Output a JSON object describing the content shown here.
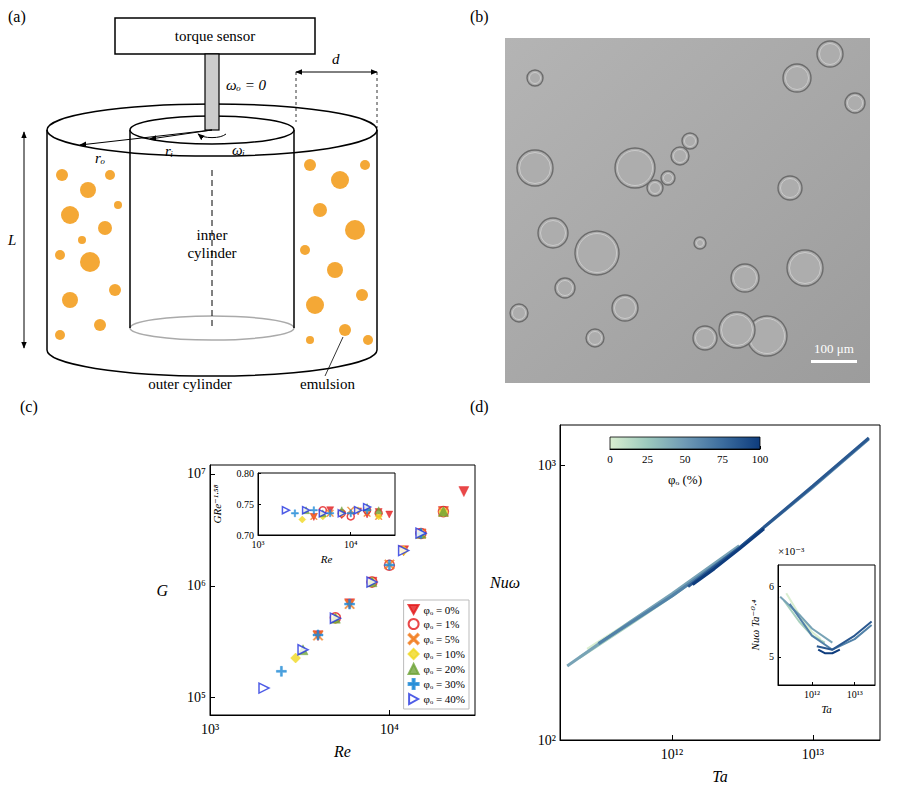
{
  "panel_labels": [
    "(a)",
    "(b)",
    "(c)",
    "(d)"
  ],
  "diagram": {
    "labels": {
      "sensor": "torque sensor",
      "omega_o": "ωₒ = 0",
      "r_o": "rₒ",
      "r_i": "rᵢ",
      "omega_i": "ωᵢ",
      "gap": "d",
      "height": "L",
      "inner": "inner cylinder",
      "outer": "outer cylinder",
      "fluid": "emulsion"
    }
  },
  "micrograph": {
    "scale_bar": "100 μm"
  },
  "chart_data": [
    {
      "type": "scatter",
      "x_label": "Re",
      "y_label": "G",
      "log": true,
      "xlim": [
        1000,
        30000
      ],
      "ylim": [
        70000,
        12000000
      ],
      "xticks": [
        {
          "value": 1000,
          "label": "10³"
        },
        {
          "value": 10000,
          "label": "10⁴"
        }
      ],
      "yticks": [
        {
          "value": 100000,
          "label": "10⁵"
        },
        {
          "value": 1000000,
          "label": "10⁶"
        },
        {
          "value": 10000000,
          "label": "10⁷"
        }
      ],
      "legend": "lower right",
      "series": [
        {
          "name": "φₒ = 0%",
          "color": "#e41a1c",
          "marker": "triangle-down",
          "x": [
            4000,
            6000,
            8000,
            12000,
            15000,
            20000,
            26000
          ],
          "values": [
            358000,
            690000,
            1075000,
            2055000,
            2905000,
            4610000,
            6940000
          ]
        },
        {
          "name": "φₒ = 1%",
          "color": "#e41a1c",
          "marker": "circle-open",
          "x": [
            5000,
            8000,
            10000,
            15000,
            20000
          ],
          "values": [
            516900,
            1079000,
            1525000,
            2933000,
            4595000
          ]
        },
        {
          "name": "φₒ = 5%",
          "color": "#f17c1e",
          "marker": "x",
          "x": [
            4000,
            6000,
            10000,
            15000,
            20000
          ],
          "values": [
            358600,
            685800,
            1546000,
            2913000,
            4564000
          ]
        },
        {
          "name": "φₒ = 10%",
          "color": "#f0d820",
          "marker": "diamond",
          "x": [
            3000,
            5000,
            8000,
            12000,
            20000
          ],
          "values": [
            226100,
            509900,
            1079000,
            2062000,
            4564000
          ]
        },
        {
          "name": "φₒ = 20%",
          "color": "#6fa43a",
          "marker": "triangle-up",
          "x": [
            3300,
            5000,
            8000,
            15000,
            20000
          ],
          "values": [
            268100,
            513400,
            1086000,
            2952000,
            4626000
          ]
        },
        {
          "name": "φₒ = 30%",
          "color": "#1f8ad6",
          "marker": "plus",
          "x": [
            2500,
            4000,
            6000,
            10000,
            15000
          ],
          "values": [
            171800,
            363500,
            685800,
            1535000,
            2933000
          ]
        },
        {
          "name": "φₒ = 40%",
          "color": "#2233e0",
          "marker": "triangle-right-open",
          "x": [
            2000,
            3300,
            5000,
            8000,
            12000,
            15000
          ],
          "values": [
            121700,
            268100,
            513400,
            1079000,
            2062000,
            2952000
          ]
        }
      ]
    },
    {
      "type": "scatter",
      "x_label": "Re",
      "y_label": "GRe⁻¹·⁵⁸",
      "log": "x",
      "xlim": [
        1000,
        30000
      ],
      "ylim": [
        0.7,
        0.8
      ],
      "xticks": [
        {
          "value": 1000,
          "label": "10³"
        },
        {
          "value": 10000,
          "label": "10⁴"
        }
      ],
      "yticks": [
        {
          "value": 0.7,
          "label": "0.70"
        },
        {
          "value": 0.75,
          "label": "0.75"
        },
        {
          "value": 0.8,
          "label": "0.80"
        }
      ],
      "series": [
        {
          "color": "#e41a1c",
          "marker": "triangle-down",
          "x": [
            4000,
            6000,
            8000,
            12000,
            15000,
            20000,
            26000
          ],
          "values": [
            0.729,
            0.74,
            0.732,
            0.738,
            0.733,
            0.737,
            0.733
          ]
        },
        {
          "color": "#e41a1c",
          "marker": "circle-open",
          "x": [
            5000,
            8000,
            10000,
            15000,
            20000
          ],
          "values": [
            0.74,
            0.735,
            0.73,
            0.74,
            0.735
          ]
        },
        {
          "color": "#f17c1e",
          "marker": "x",
          "x": [
            4000,
            6000,
            10000,
            15000,
            20000
          ],
          "values": [
            0.73,
            0.735,
            0.74,
            0.735,
            0.73
          ]
        },
        {
          "color": "#f0d820",
          "marker": "diamond",
          "x": [
            3000,
            5000,
            8000,
            12000,
            20000
          ],
          "values": [
            0.725,
            0.73,
            0.735,
            0.74,
            0.73
          ]
        },
        {
          "color": "#6fa43a",
          "marker": "triangle-up",
          "x": [
            3300,
            5000,
            8000,
            15000,
            20000
          ],
          "values": [
            0.74,
            0.735,
            0.74,
            0.745,
            0.74
          ]
        },
        {
          "color": "#1f8ad6",
          "marker": "plus",
          "x": [
            2500,
            4000,
            6000,
            10000,
            15000
          ],
          "values": [
            0.735,
            0.74,
            0.735,
            0.735,
            0.74
          ]
        },
        {
          "color": "#2233e0",
          "marker": "triangle-right-open",
          "x": [
            2000,
            3300,
            5000,
            8000,
            12000,
            15000
          ],
          "values": [
            0.74,
            0.74,
            0.735,
            0.735,
            0.74,
            0.745
          ]
        }
      ]
    },
    {
      "type": "line",
      "x_label": "Ta",
      "y_label": "Nuω",
      "log": true,
      "xlim": [
        160000000000.0,
        30000000000000.0
      ],
      "ylim": [
        100,
        1400
      ],
      "xticks": [
        {
          "value": 1000000000000.0,
          "label": "10¹²"
        },
        {
          "value": 10000000000000.0,
          "label": "10¹³"
        }
      ],
      "yticks": [
        {
          "value": 100,
          "label": "10²"
        },
        {
          "value": 1000,
          "label": "10³"
        }
      ],
      "colorbar": {
        "label": "φₒ (%)",
        "range": [
          0,
          100
        ],
        "ticks": [
          0,
          25,
          50,
          75,
          100
        ],
        "colors": [
          "#d9eed0",
          "#9cc9bd",
          "#6f9ab5",
          "#3c6d9e",
          "#0e3c7d"
        ]
      },
      "series": [
        {
          "color": "#d9eed0",
          "x": [
            250000000000.0,
            500000000000.0,
            1000000000000.0,
            1600000000000.0
          ],
          "values": [
            213.8,
            268.0,
            337.6,
            400.0
          ]
        },
        {
          "color": "#a7d0be",
          "x": [
            220000000000.0,
            500000000000.0,
            1000000000000.0,
            2000000000000.0
          ],
          "values": [
            199.7,
            263.2,
            334.4,
            432.5
          ]
        },
        {
          "color": "#78a3b6",
          "x": [
            180000000000.0,
            500000000000.0,
            1000000000000.0,
            3000000000000.0
          ],
          "values": [
            185.9,
            268.0,
            340.7,
            509.3
          ]
        },
        {
          "color": "#5282a8",
          "x": [
            300000000000.0,
            1000000000000.0,
            3000000000000.0,
            10000000000000.0,
            25000000000000.0
          ],
          "values": [
            224.2,
            334.4,
            499.5,
            832.1,
            1245.7
          ]
        },
        {
          "color": "#2a5890",
          "x": [
            1300000000000.0,
            3000000000000.0,
            10000000000000.0,
            25000000000000.0
          ],
          "values": [
            361.3,
            499.5,
            840.0,
            1257.1
          ]
        },
        {
          "color": "#0e3c7d",
          "x": [
            1400000000000.0,
            2000000000000.0,
            3000000000000.0,
            4500000000000.0
          ],
          "values": [
            367.8,
            420.1,
            494.6,
            587.0
          ]
        }
      ]
    },
    {
      "type": "line",
      "x_label": "Ta",
      "y_label": "Nuω Ta⁻⁰·⁴",
      "log": "x",
      "xlim": [
        160000000000.0,
        30000000000000.0
      ],
      "ylim": [
        0.0046,
        0.0063
      ],
      "xticks": [
        {
          "value": 1000000000000.0,
          "label": "10¹²"
        },
        {
          "value": 10000000000000.0,
          "label": "10¹³"
        }
      ],
      "yticks": [
        {
          "value": 0.005,
          "label": "5"
        },
        {
          "value": 0.006,
          "label": "6"
        }
      ],
      "y_multiplier": "×10⁻³",
      "series": [
        {
          "color": "#d9eed0",
          "x": [
            250000000000.0,
            500000000000.0,
            1000000000000.0,
            1600000000000.0
          ],
          "values": [
            0.0059,
            0.0056,
            0.00535,
            0.00525
          ]
        },
        {
          "color": "#a7d0be",
          "x": [
            220000000000.0,
            500000000000.0,
            1000000000000.0,
            2000000000000.0
          ],
          "values": [
            0.0058,
            0.0055,
            0.0053,
            0.0052
          ]
        },
        {
          "color": "#78a3b6",
          "x": [
            180000000000.0,
            500000000000.0,
            1000000000000.0,
            3000000000000.0
          ],
          "values": [
            0.00585,
            0.0056,
            0.0054,
            0.0052
          ]
        },
        {
          "color": "#5282a8",
          "x": [
            300000000000.0,
            1000000000000.0,
            3000000000000.0,
            10000000000000.0,
            25000000000000.0
          ],
          "values": [
            0.00575,
            0.0053,
            0.0051,
            0.00525,
            0.00545
          ]
        },
        {
          "color": "#2a5890",
          "x": [
            1300000000000.0,
            3000000000000.0,
            10000000000000.0,
            25000000000000.0
          ],
          "values": [
            0.00515,
            0.0051,
            0.0053,
            0.0055
          ]
        },
        {
          "color": "#0e3c7d",
          "x": [
            1400000000000.0,
            2000000000000.0,
            3000000000000.0,
            4500000000000.0
          ],
          "values": [
            0.0051,
            0.00505,
            0.00505,
            0.0051
          ]
        }
      ]
    }
  ]
}
